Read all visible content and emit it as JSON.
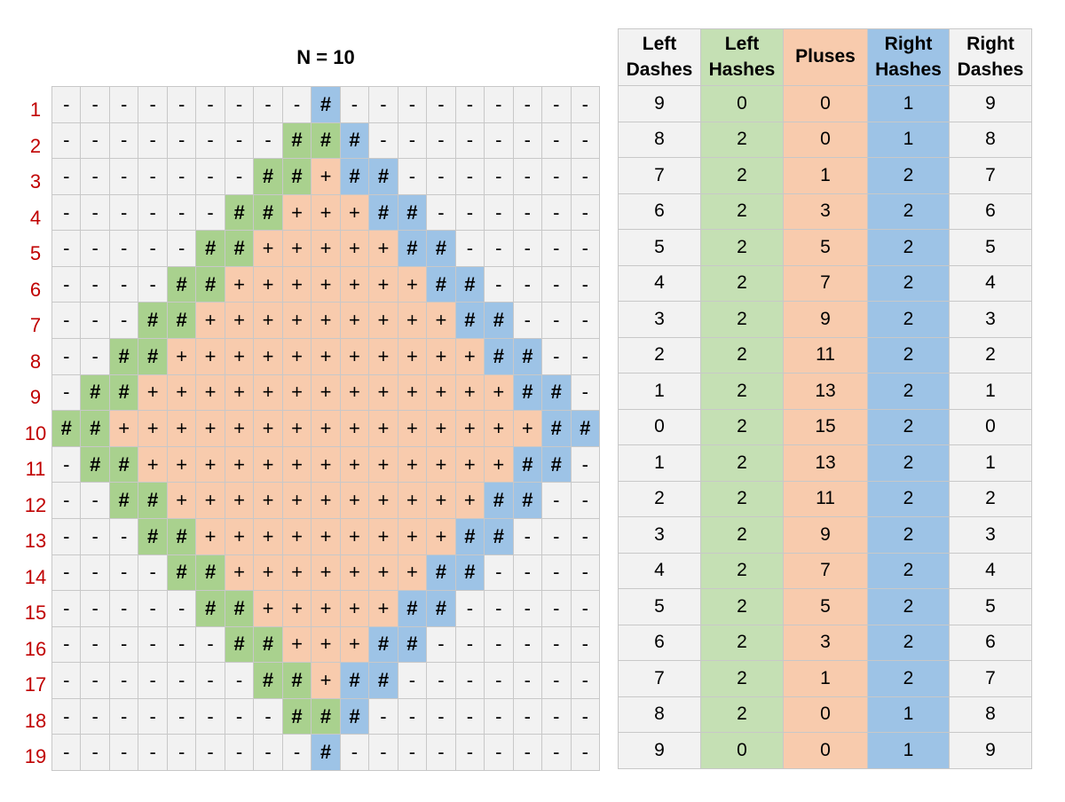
{
  "title": "N = 10",
  "table_headers": [
    [
      "Left",
      "Dashes"
    ],
    [
      "Left",
      "Hashes"
    ],
    [
      "Pluses"
    ],
    [
      "Right",
      "Hashes"
    ],
    [
      "Right",
      "Dashes"
    ]
  ],
  "table_rows": [
    [
      9,
      0,
      0,
      1,
      9
    ],
    [
      8,
      2,
      0,
      1,
      8
    ],
    [
      7,
      2,
      1,
      2,
      7
    ],
    [
      6,
      2,
      3,
      2,
      6
    ],
    [
      5,
      2,
      5,
      2,
      5
    ],
    [
      4,
      2,
      7,
      2,
      4
    ],
    [
      3,
      2,
      9,
      2,
      3
    ],
    [
      2,
      2,
      11,
      2,
      2
    ],
    [
      1,
      2,
      13,
      2,
      1
    ],
    [
      0,
      2,
      15,
      2,
      0
    ],
    [
      1,
      2,
      13,
      2,
      1
    ],
    [
      2,
      2,
      11,
      2,
      2
    ],
    [
      3,
      2,
      9,
      2,
      3
    ],
    [
      4,
      2,
      7,
      2,
      4
    ],
    [
      5,
      2,
      5,
      2,
      5
    ],
    [
      6,
      2,
      3,
      2,
      6
    ],
    [
      7,
      2,
      1,
      2,
      7
    ],
    [
      8,
      2,
      0,
      1,
      8
    ],
    [
      9,
      0,
      0,
      1,
      9
    ]
  ],
  "row_labels": [
    "1",
    "2",
    "3",
    "4",
    "5",
    "6",
    "7",
    "8",
    "9",
    "10",
    "11",
    "12",
    "13",
    "14",
    "15",
    "16",
    "17",
    "18",
    "19"
  ],
  "grid_rows": [
    "---------#---------",
    "--------###--------",
    "-------##+##-------",
    "------##+++##------",
    "-----##+++++##-----",
    "----##+++++++##----",
    "---##+++++++++##---",
    "--##+++++++++++##--",
    "-##+++++++++++++##-",
    "##+++++++++++++++##",
    "-##+++++++++++++##-",
    "--##+++++++++++##--",
    "---##+++++++++##---",
    "----##+++++++##----",
    "-----##+++++##-----",
    "------##+++##------",
    "-------##+##-------",
    "--------###--------",
    "---------#---------"
  ],
  "colors": {
    "dash": "#f2f2f2",
    "left_hash": "#a9d18e",
    "plus": "#f8cbad",
    "right_hash": "#9dc3e6",
    "row_label": "#c00000"
  }
}
